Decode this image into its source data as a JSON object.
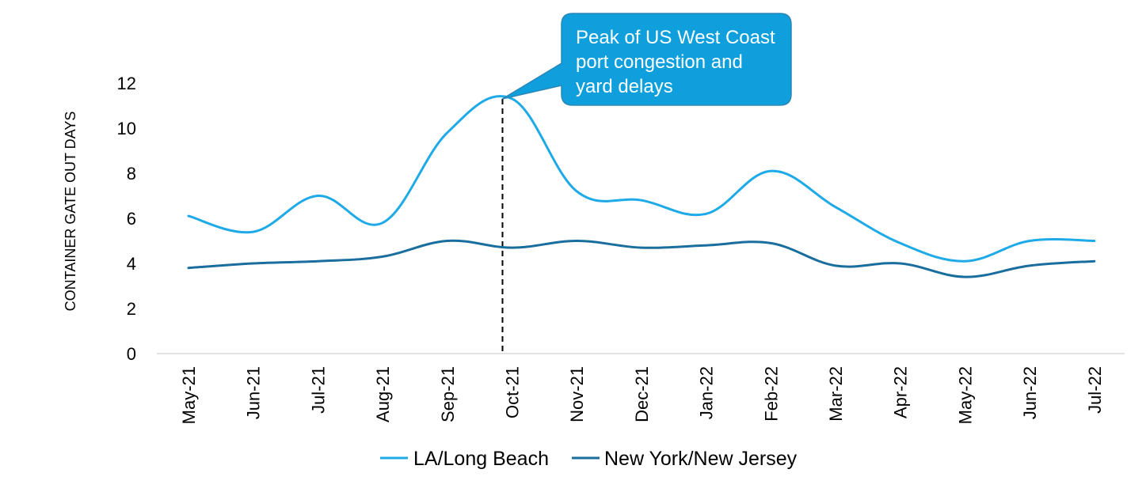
{
  "chart_data": {
    "type": "line",
    "ylabel": "CONTAINER GATE OUT DAYS",
    "xlabel": "",
    "ylim": [
      0,
      12
    ],
    "yticks": [
      0,
      2,
      4,
      6,
      8,
      10,
      12
    ],
    "categories": [
      "May-21",
      "Jun-21",
      "Jul-21",
      "Aug-21",
      "Sep-21",
      "Oct-21",
      "Nov-21",
      "Dec-21",
      "Jan-22",
      "Feb-22",
      "Mar-22",
      "Apr-22",
      "May-22",
      "Jun-22",
      "Jul-22"
    ],
    "series": [
      {
        "name": "LA/Long Beach",
        "color": "#1eaae7",
        "values": [
          6.1,
          5.4,
          7.0,
          5.8,
          9.8,
          11.3,
          7.2,
          6.8,
          6.2,
          8.1,
          6.5,
          4.9,
          4.1,
          5.0,
          5.0
        ]
      },
      {
        "name": "New York/New Jersey",
        "color": "#1a6e9e",
        "values": [
          3.8,
          4.0,
          4.1,
          4.3,
          5.0,
          4.7,
          5.0,
          4.7,
          4.8,
          4.9,
          3.9,
          4.0,
          3.4,
          3.9,
          4.1
        ]
      }
    ],
    "peak_marker": {
      "category_index": 5,
      "value": 11.3,
      "style": "dashed"
    },
    "annotation": {
      "lines": [
        "Peak of US West Coast",
        "port congestion and",
        "yard delays"
      ],
      "fill": "#0e9fdc",
      "border": "#2a86b8"
    },
    "grid": false,
    "legend_position": "bottom"
  }
}
